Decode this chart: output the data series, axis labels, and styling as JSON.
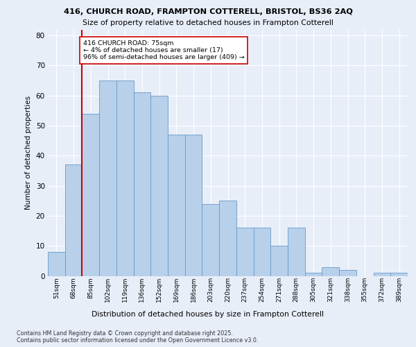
{
  "title1": "416, CHURCH ROAD, FRAMPTON COTTERELL, BRISTOL, BS36 2AQ",
  "title2": "Size of property relative to detached houses in Frampton Cotterell",
  "xlabel": "Distribution of detached houses by size in Frampton Cotterell",
  "ylabel": "Number of detached properties",
  "categories": [
    "51sqm",
    "68sqm",
    "85sqm",
    "102sqm",
    "119sqm",
    "136sqm",
    "152sqm",
    "169sqm",
    "186sqm",
    "203sqm",
    "220sqm",
    "237sqm",
    "254sqm",
    "271sqm",
    "288sqm",
    "305sqm",
    "321sqm",
    "338sqm",
    "355sqm",
    "372sqm",
    "389sqm"
  ],
  "values": [
    8,
    37,
    54,
    65,
    65,
    61,
    60,
    47,
    47,
    24,
    25,
    16,
    16,
    10,
    16,
    1,
    3,
    2,
    0,
    1,
    1
  ],
  "bar_color": "#b8d0ea",
  "bar_edge_color": "#6699cc",
  "vline_color": "#cc0000",
  "vline_pos": 1.5,
  "annotation_text": "416 CHURCH ROAD: 75sqm\n← 4% of detached houses are smaller (17)\n96% of semi-detached houses are larger (409) →",
  "annotation_box_color": "#ffffff",
  "annotation_box_edge": "#cc0000",
  "ylim": [
    0,
    82
  ],
  "yticks": [
    0,
    10,
    20,
    30,
    40,
    50,
    60,
    70,
    80
  ],
  "footnote": "Contains HM Land Registry data © Crown copyright and database right 2025.\nContains public sector information licensed under the Open Government Licence v3.0.",
  "background_color": "#e8eef8",
  "grid_color": "#ffffff"
}
